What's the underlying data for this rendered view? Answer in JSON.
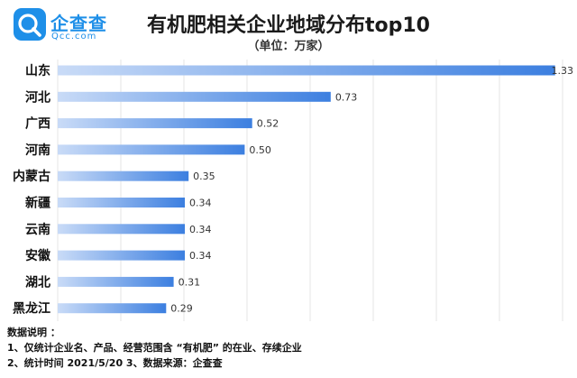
{
  "logo": {
    "brand_cn": "企查查",
    "brand_en": "Qcc.com"
  },
  "chart_data": {
    "type": "bar",
    "orientation": "horizontal",
    "title": "有机肥相关企业地域分布top10",
    "subtitle": "（单位：万家）",
    "categories": [
      "山东",
      "河北",
      "广西",
      "河南",
      "内蒙古",
      "新疆",
      "云南",
      "安徽",
      "湖北",
      "黑龙江"
    ],
    "values": [
      1.33,
      0.73,
      0.52,
      0.5,
      0.35,
      0.34,
      0.34,
      0.34,
      0.31,
      0.29
    ],
    "value_labels": [
      "1.33",
      "0.73",
      "0.52",
      "0.50",
      "0.35",
      "0.34",
      "0.34",
      "0.34",
      "0.31",
      "0.29"
    ],
    "xlim": [
      0,
      1.35
    ],
    "grid": true,
    "bar_color_start": "#c9dbf7",
    "bar_color_end": "#3c7fe0"
  },
  "notes": {
    "heading": "数据说明 ：",
    "line1": "1、仅统计企业名、产品、经营范围含 “有机肥” 的在业、存续企业",
    "line2": "2、统计时间  2021/5/20     3、数据来源：企查查"
  }
}
